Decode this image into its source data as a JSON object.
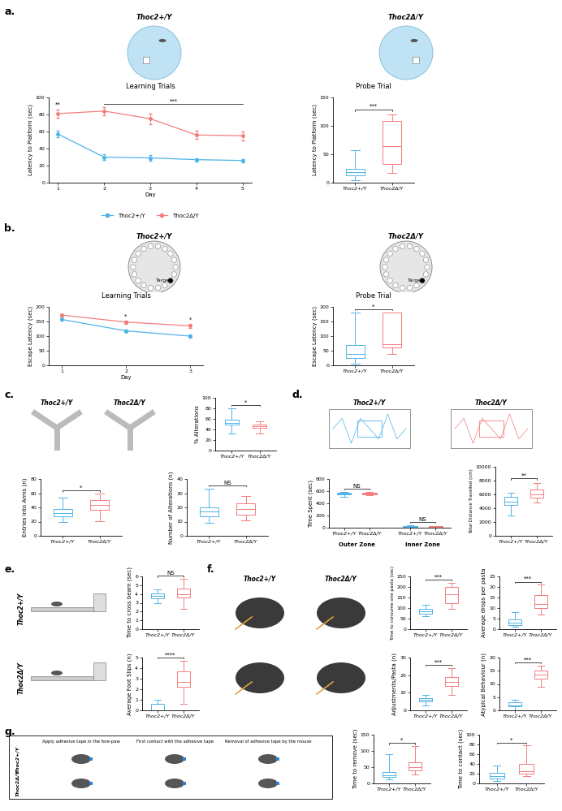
{
  "chart_data": [
    {
      "type": "line",
      "title": "Learning Trials",
      "xlabel": "Day",
      "ylabel": "Latency to Platform (sec)",
      "x": [
        1,
        2,
        3,
        4,
        5
      ],
      "xlim": [
        0.8,
        5.2
      ],
      "xticks": [
        1,
        2,
        3,
        4,
        5
      ],
      "ylim": [
        0,
        100
      ],
      "yticks": [
        0,
        20,
        40,
        60,
        80,
        100
      ],
      "legend": "bottom",
      "series": [
        {
          "name": "Thoc2+/Y",
          "color": "#4fb3e8",
          "marker": "o",
          "values": [
            57,
            30,
            29,
            27,
            26
          ],
          "errors": [
            4,
            3,
            3,
            2,
            2
          ]
        },
        {
          "name": "Thoc2Δ/Y",
          "color": "#f47c7c",
          "marker": "o",
          "values": [
            81,
            84,
            75,
            56,
            55
          ],
          "errors": [
            5,
            5,
            6,
            5,
            5
          ]
        }
      ],
      "annotations": [
        {
          "text": "**",
          "x": [
            1,
            1
          ]
        },
        {
          "text": "***",
          "x": [
            2,
            5
          ]
        }
      ]
    },
    {
      "type": "box",
      "title": "Probe Trial",
      "ylabel": "Latency to Platform (sec)",
      "categories": [
        "Thoc2+/Y",
        "Thoc2Δ/Y"
      ],
      "colors": [
        "#4fb3e8",
        "#f47c7c"
      ],
      "min": [
        5,
        17
      ],
      "q1": [
        13,
        33
      ],
      "median": [
        18,
        65
      ],
      "q3": [
        25,
        108
      ],
      "max": [
        57,
        120
      ],
      "ylim": [
        0,
        150
      ],
      "yticks": [
        0,
        50,
        100,
        150
      ],
      "annotations": [
        {
          "text": "***"
        }
      ]
    },
    {
      "type": "line",
      "title": "Learning Trials",
      "xlabel": "Day",
      "ylabel": "Escape Latency (sec)",
      "x": [
        1,
        2,
        3
      ],
      "xlim": [
        0.8,
        3.2
      ],
      "xticks": [
        1,
        2,
        3
      ],
      "ylim": [
        0,
        200
      ],
      "yticks": [
        0,
        50,
        100,
        150,
        200
      ],
      "series": [
        {
          "name": "Thoc2+/Y",
          "color": "#4fb3e8",
          "marker": "o",
          "values": [
            157,
            118,
            100
          ],
          "errors": [
            5,
            5,
            6
          ]
        },
        {
          "name": "Thoc2Δ/Y",
          "color": "#f47c7c",
          "marker": "o",
          "values": [
            172,
            148,
            135
          ],
          "errors": [
            4,
            5,
            6
          ]
        }
      ],
      "annotations": [
        {
          "text": "*",
          "x": [
            2,
            2
          ]
        },
        {
          "text": "*",
          "x": [
            3,
            3
          ]
        }
      ]
    },
    {
      "type": "box",
      "title": "Probe Trial",
      "ylabel": "Escape Latency (sec)",
      "categories": [
        "Thoc2+/Y",
        "Thoc2Δ/Y"
      ],
      "colors": [
        "#4fb3e8",
        "#f47c7c"
      ],
      "min": [
        5,
        40
      ],
      "q1": [
        25,
        62
      ],
      "median": [
        40,
        72
      ],
      "q3": [
        70,
        180
      ],
      "max": [
        180,
        180
      ],
      "ylim": [
        0,
        200
      ],
      "yticks": [
        0,
        50,
        100,
        150,
        200
      ],
      "annotations": [
        {
          "text": "*"
        }
      ]
    },
    {
      "type": "box",
      "ylabel": "% Alterations",
      "categories": [
        "Thoc2+/Y",
        "Thoc2Δ/Y"
      ],
      "colors": [
        "#4fb3e8",
        "#f47c7c"
      ],
      "min": [
        32,
        33
      ],
      "q1": [
        50,
        43
      ],
      "median": [
        53,
        46
      ],
      "q3": [
        58,
        50
      ],
      "max": [
        80,
        55
      ],
      "ylim": [
        0,
        100
      ],
      "yticks": [
        0,
        20,
        40,
        60,
        80,
        100
      ],
      "annotations": [
        {
          "text": "*"
        }
      ]
    },
    {
      "type": "box",
      "ylabel": "Entries into Arms (n)",
      "categories": [
        "Thoc2+/Y",
        "Thoc2Δ/Y"
      ],
      "colors": [
        "#4fb3e8",
        "#f47c7c"
      ],
      "min": [
        20,
        21
      ],
      "q1": [
        28,
        37
      ],
      "median": [
        32,
        43
      ],
      "q3": [
        38,
        50
      ],
      "max": [
        54,
        59
      ],
      "ylim": [
        0,
        80
      ],
      "yticks": [
        0,
        20,
        40,
        60,
        80
      ],
      "annotations": [
        {
          "text": "*"
        }
      ]
    },
    {
      "type": "box",
      "ylabel": "Number of Alterations (n)",
      "categories": [
        "Thoc2+/Y",
        "Thoc2Δ/Y"
      ],
      "colors": [
        "#4fb3e8",
        "#f47c7c"
      ],
      "min": [
        9,
        11
      ],
      "q1": [
        14,
        15
      ],
      "median": [
        17,
        19
      ],
      "q3": [
        20,
        23
      ],
      "max": [
        33,
        28
      ],
      "ylim": [
        0,
        40
      ],
      "yticks": [
        0,
        10,
        20,
        30,
        40
      ],
      "annotations": [
        {
          "text": "NS"
        }
      ]
    },
    {
      "type": "grouped_box",
      "ylabel": "Time Spent (sec)",
      "categories": [
        "Outer Zone",
        "Inner Zone"
      ],
      "series": [
        {
          "name": "Thoc2+/Y",
          "color": "#4fb3e8",
          "min": [
            510,
            0
          ],
          "q1": [
            545,
            5
          ],
          "median": [
            555,
            15
          ],
          "q3": [
            570,
            30
          ],
          "max": [
            590,
            45
          ]
        },
        {
          "name": "Thoc2Δ/Y",
          "color": "#f47c7c",
          "min": [
            540,
            0
          ],
          "q1": [
            550,
            5
          ],
          "median": [
            560,
            12
          ],
          "q3": [
            570,
            22
          ],
          "max": [
            585,
            30
          ]
        }
      ],
      "ylim": [
        0,
        800
      ],
      "yticks": [
        0,
        200,
        400,
        600,
        800
      ],
      "annotations": [
        {
          "text": "NS",
          "category": "Outer Zone"
        },
        {
          "text": "NS",
          "category": "Inner Zone"
        }
      ]
    },
    {
      "type": "box",
      "ylabel": "Total Distance Travelled (cm)",
      "categories": [
        "Thoc2+/Y",
        "Thoc2Δ/Y"
      ],
      "colors": [
        "#4fb3e8",
        "#f47c7c"
      ],
      "min": [
        3000,
        4800
      ],
      "q1": [
        4500,
        5500
      ],
      "median": [
        5000,
        6000
      ],
      "q3": [
        5600,
        6700
      ],
      "max": [
        6200,
        7700
      ],
      "ylim": [
        0,
        10000
      ],
      "yticks": [
        0,
        2000,
        4000,
        6000,
        8000,
        10000
      ],
      "annotations": [
        {
          "text": "**"
        }
      ]
    },
    {
      "type": "box",
      "ylabel": "Time to cross beam (sec)",
      "categories": [
        "Thoc2+/Y",
        "Thoc2Δ/Y"
      ],
      "colors": [
        "#4fb3e8",
        "#f47c7c"
      ],
      "min": [
        3.0,
        2.3
      ],
      "q1": [
        3.5,
        3.6
      ],
      "median": [
        3.8,
        4.0
      ],
      "q3": [
        4.1,
        4.6
      ],
      "max": [
        4.5,
        5.7
      ],
      "ylim": [
        0,
        6
      ],
      "yticks": [
        0,
        1,
        2,
        3,
        4,
        5,
        6
      ],
      "annotations": [
        {
          "text": "NS"
        }
      ]
    },
    {
      "type": "box",
      "ylabel": "Average Foot Slips (n)",
      "categories": [
        "Thoc2+/Y",
        "Thoc2Δ/Y"
      ],
      "colors": [
        "#4fb3e8",
        "#f47c7c"
      ],
      "min": [
        0,
        0.6
      ],
      "q1": [
        0,
        2.2
      ],
      "median": [
        0,
        2.7
      ],
      "q3": [
        0.6,
        3.7
      ],
      "max": [
        1.0,
        4.7
      ],
      "ylim": [
        0,
        5
      ],
      "yticks": [
        0,
        1,
        2,
        3,
        4,
        5
      ],
      "annotations": [
        {
          "text": "****"
        }
      ]
    },
    {
      "type": "box",
      "ylabel": "Time to consume one pasta (sec)",
      "categories": [
        "Thoc2+/Y",
        "Thoc2Δ/Y"
      ],
      "colors": [
        "#4fb3e8",
        "#f47c7c"
      ],
      "min": [
        60,
        95
      ],
      "q1": [
        72,
        125
      ],
      "median": [
        85,
        165
      ],
      "q3": [
        95,
        200
      ],
      "max": [
        115,
        220
      ],
      "ylim": [
        0,
        250
      ],
      "yticks": [
        0,
        50,
        100,
        150,
        200,
        250
      ],
      "annotations": [
        {
          "text": "***"
        }
      ]
    },
    {
      "type": "box",
      "ylabel": "Average drops per pasta",
      "categories": [
        "Thoc2+/Y",
        "Thoc2Δ/Y"
      ],
      "colors": [
        "#4fb3e8",
        "#f47c7c"
      ],
      "min": [
        1,
        7
      ],
      "q1": [
        2,
        10
      ],
      "median": [
        3,
        12
      ],
      "q3": [
        4.5,
        16
      ],
      "max": [
        8,
        21
      ],
      "ylim": [
        0,
        25
      ],
      "yticks": [
        0,
        5,
        10,
        15,
        20,
        25
      ],
      "annotations": [
        {
          "text": "***"
        }
      ]
    },
    {
      "type": "box",
      "ylabel": "Adjustments/Pasta (n)",
      "categories": [
        "Thoc2+/Y",
        "Thoc2Δ/Y"
      ],
      "colors": [
        "#4fb3e8",
        "#f47c7c"
      ],
      "min": [
        3,
        9
      ],
      "q1": [
        5,
        14
      ],
      "median": [
        6,
        16
      ],
      "q3": [
        7,
        19
      ],
      "max": [
        9,
        24
      ],
      "ylim": [
        0,
        30
      ],
      "yticks": [
        0,
        10,
        20,
        30
      ],
      "annotations": [
        {
          "text": "***"
        }
      ]
    },
    {
      "type": "box",
      "ylabel": "Atypical Behaviour (n)",
      "categories": [
        "Thoc2+/Y",
        "Thoc2Δ/Y"
      ],
      "colors": [
        "#4fb3e8",
        "#f47c7c"
      ],
      "min": [
        0,
        9
      ],
      "q1": [
        1.5,
        12
      ],
      "median": [
        2,
        13.5
      ],
      "q3": [
        3,
        15
      ],
      "max": [
        4,
        17
      ],
      "ylim": [
        0,
        20
      ],
      "yticks": [
        0,
        5,
        10,
        15,
        20
      ],
      "annotations": [
        {
          "text": "***"
        }
      ]
    },
    {
      "type": "box",
      "ylabel": "Time to remove (sec)",
      "categories": [
        "Thoc2+/Y",
        "Thoc2Δ/Y"
      ],
      "colors": [
        "#4fb3e8",
        "#f47c7c"
      ],
      "min": [
        12,
        28
      ],
      "q1": [
        20,
        40
      ],
      "median": [
        25,
        50
      ],
      "q3": [
        35,
        65
      ],
      "max": [
        90,
        115
      ],
      "ylim": [
        0,
        150
      ],
      "yticks": [
        0,
        50,
        100,
        150
      ],
      "annotations": [
        {
          "text": "*"
        }
      ]
    },
    {
      "type": "box",
      "ylabel": "Time to contact (sec)",
      "categories": [
        "Thoc2+/Y",
        "Thoc2Δ/Y"
      ],
      "colors": [
        "#4fb3e8",
        "#f47c7c"
      ],
      "min": [
        5,
        15
      ],
      "q1": [
        10,
        20
      ],
      "median": [
        15,
        25
      ],
      "q3": [
        22,
        40
      ],
      "max": [
        37,
        78
      ],
      "ylim": [
        0,
        100
      ],
      "yticks": [
        0,
        20,
        40,
        60,
        80,
        100
      ],
      "annotations": [
        {
          "text": "*"
        }
      ]
    }
  ],
  "diagrams": [
    {
      "panel": "a.",
      "titles": [
        "Thoc2+/Y",
        "Thoc2Δ/Y"
      ]
    },
    {
      "panel": "b.",
      "titles": [
        "Thoc2+/Y",
        "Thoc2Δ/Y"
      ],
      "target": "Target"
    },
    {
      "panel": "c.",
      "titles": [
        "Thoc2+/Y",
        "Thoc2Δ/Y"
      ]
    },
    {
      "panel": "d.",
      "titles": [
        "Thoc2+/Y",
        "Thoc2Δ/Y"
      ]
    },
    {
      "panel": "e.",
      "titles": [
        "Thoc2+/Y",
        "Thoc2Δ/Y"
      ]
    },
    {
      "panel": "f.",
      "titles": [
        "Thoc2+/Y",
        "Thoc2Δ/Y"
      ]
    },
    {
      "panel": "g.",
      "titles": [
        "Thoc2+/Y",
        "Thoc2Δ/Y"
      ],
      "steps": [
        "Apply adhesive tape in the fore-paw",
        "First contact with the adhesive tape",
        "Removal of adhesive tape by the mouse"
      ]
    }
  ]
}
